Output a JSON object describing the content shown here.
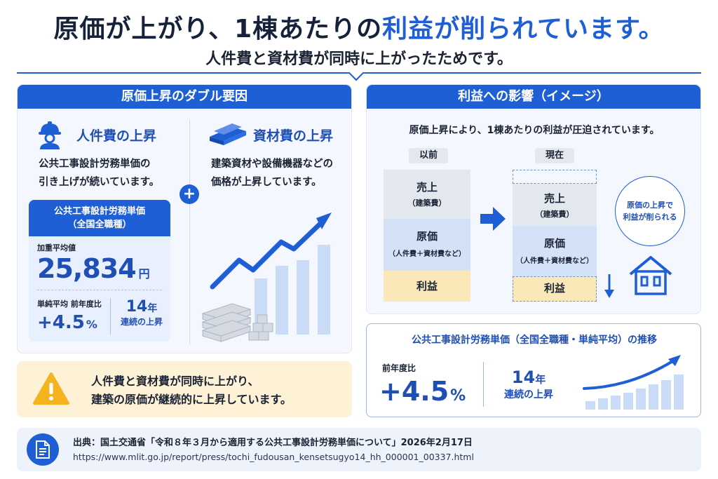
{
  "header": {
    "title_part1": "原価が上がり、1棟あたりの",
    "title_highlight": "利益が削られています。",
    "subtitle": "人件費と資材費が同時に上がったためです。"
  },
  "left_panel": {
    "title": "原価上昇のダブル要因",
    "labor": {
      "title": "人件費の上昇",
      "text_line1": "公共工事設計労務単価の",
      "text_line2": "引き上げが続いています。"
    },
    "material": {
      "title": "資材費の上昇",
      "text_line1": "建築資材や設備機器などの",
      "text_line2": "価格が上昇しています。"
    },
    "plus": "+",
    "wage_card": {
      "head_line1": "公共工事設計労務単価",
      "head_line2": "（全国全職種）",
      "avg_label": "加重平均値",
      "avg_value": "25,834",
      "avg_unit": "円",
      "change_label": "単純平均 前年度比",
      "change_value": "+4.5",
      "change_unit": "%",
      "years_value": "14",
      "years_unit": "年",
      "years_label": "連続の上昇"
    }
  },
  "warning": {
    "line1": "人件費と資材費が同時に上がり、",
    "line2": "建築の原価が継続的に上昇しています。"
  },
  "right_panel": {
    "title": "利益への影響（イメージ）",
    "caption": "原価上昇により、1棟あたりの利益が圧迫されています。",
    "before_label": "以前",
    "now_label": "現在",
    "sales_label": "売上",
    "sales_sub": "（建築費）",
    "cost_label": "原価",
    "cost_sub": "（人件費＋資材費など）",
    "profit_label": "利益",
    "bubble_line1": "原価の上昇で",
    "bubble_line2": "利益が削られる"
  },
  "trend_panel": {
    "title": "公共工事設計労務単価（全国全職種・単純平均）の推移",
    "change_label": "前年度比",
    "change_value": "+4.5",
    "change_unit": "%",
    "years_value": "14",
    "years_unit": "年",
    "years_label": "連続の上昇"
  },
  "source": {
    "line1": "出典：国土交通省「令和８年３月から適用する公共工事設計労務単価について」2026年2月17日",
    "url": "https://www.mlit.go.jp/report/press/tochi_fudousan_kensetsugyo14_hh_000001_00337.html"
  },
  "colors": {
    "primary": "#1f5fd6",
    "warning_bg": "#fdf2d6",
    "profit_bg": "#fbe8b8"
  }
}
